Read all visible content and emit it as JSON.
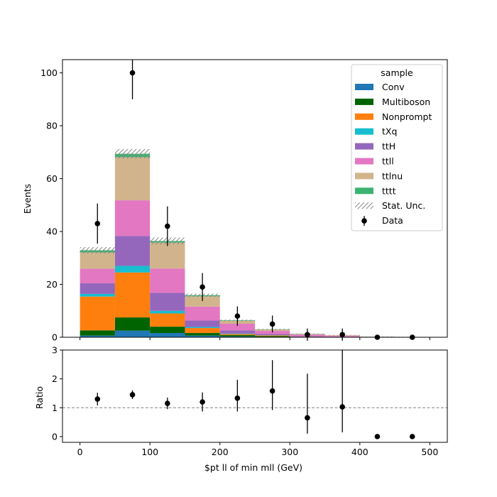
{
  "chart_data": [
    {
      "type": "bar",
      "stacked": true,
      "bin_edges": [
        0,
        50,
        100,
        150,
        200,
        250,
        300,
        350,
        400,
        450,
        500
      ],
      "ylabel": "Events",
      "ylim": [
        0,
        105
      ],
      "yticks": [
        0,
        20,
        40,
        60,
        80,
        100
      ],
      "legend_title": "sample",
      "legend_position": "top-right",
      "series": [
        {
          "name": "Conv",
          "color": "#1f77b4",
          "values": [
            0.6,
            2.5,
            1.6,
            0.6,
            0.3,
            0.1,
            0.0,
            0.0,
            0.0,
            0.0
          ]
        },
        {
          "name": "Multiboson",
          "color": "#006400",
          "values": [
            2.0,
            5.0,
            2.4,
            1.0,
            0.5,
            0.3,
            0.1,
            0.1,
            0.0,
            0.0
          ]
        },
        {
          "name": "Nonprompt",
          "color": "#ff7f0e",
          "values": [
            12.8,
            17.0,
            5.0,
            1.9,
            0.4,
            0.3,
            0.1,
            0.1,
            0.0,
            0.0
          ]
        },
        {
          "name": "tXq",
          "color": "#17becf",
          "values": [
            1.0,
            2.5,
            1.0,
            0.4,
            0.2,
            0.1,
            0.0,
            0.0,
            0.0,
            0.0
          ]
        },
        {
          "name": "ttH",
          "color": "#9467bd",
          "values": [
            4.0,
            11.3,
            6.8,
            2.4,
            1.2,
            0.4,
            0.2,
            0.1,
            0.0,
            0.0
          ]
        },
        {
          "name": "ttll",
          "color": "#e377c2",
          "values": [
            5.5,
            13.5,
            9.2,
            5.3,
            2.5,
            1.2,
            0.6,
            0.3,
            0.1,
            0.0
          ]
        },
        {
          "name": "ttlnu",
          "color": "#d2b48c",
          "values": [
            6.2,
            16.3,
            9.8,
            3.9,
            1.1,
            0.5,
            0.2,
            0.2,
            0.1,
            0.0
          ]
        },
        {
          "name": "tttt",
          "color": "#3cb371",
          "values": [
            0.8,
            1.3,
            0.6,
            0.4,
            0.2,
            0.1,
            0.1,
            0.0,
            0.0,
            0.0
          ]
        }
      ],
      "stat_unc": [
        1.2,
        1.8,
        1.3,
        0.6,
        0.3,
        0.2,
        0.1,
        0.1,
        0.05,
        0.02
      ],
      "stat_unc_label": "Stat. Unc.",
      "data": {
        "name": "Data",
        "x": [
          25,
          75,
          125,
          175,
          225,
          275,
          325,
          375,
          425,
          475
        ],
        "y": [
          43,
          100,
          42,
          19,
          8,
          5,
          1,
          1,
          0,
          0
        ],
        "yerr": [
          7.6,
          10.0,
          7.5,
          5.3,
          3.7,
          3.2,
          2.3,
          2.3,
          0,
          0
        ]
      }
    },
    {
      "type": "scatter",
      "xlabel": "$pt ll of min mll (GeV)",
      "ylabel": "Ratio",
      "xlim": [
        -25,
        525
      ],
      "xticks": [
        0,
        100,
        200,
        300,
        400,
        500
      ],
      "ylim": [
        -0.2,
        3
      ],
      "yticks": [
        0,
        1,
        2,
        3
      ],
      "reference_line": 1,
      "x": [
        25,
        75,
        125,
        175,
        225,
        275,
        325,
        375,
        425,
        475
      ],
      "y": [
        1.3,
        1.45,
        1.15,
        1.2,
        1.33,
        1.58,
        0.65,
        1.03,
        0.0,
        0.0
      ],
      "yerr_low": [
        0.22,
        0.15,
        0.2,
        0.33,
        0.46,
        0.66,
        0.55,
        0.88,
        0,
        0
      ],
      "yerr_high": [
        0.22,
        0.15,
        0.2,
        0.33,
        0.64,
        1.07,
        1.53,
        2.1,
        0,
        0
      ]
    }
  ]
}
